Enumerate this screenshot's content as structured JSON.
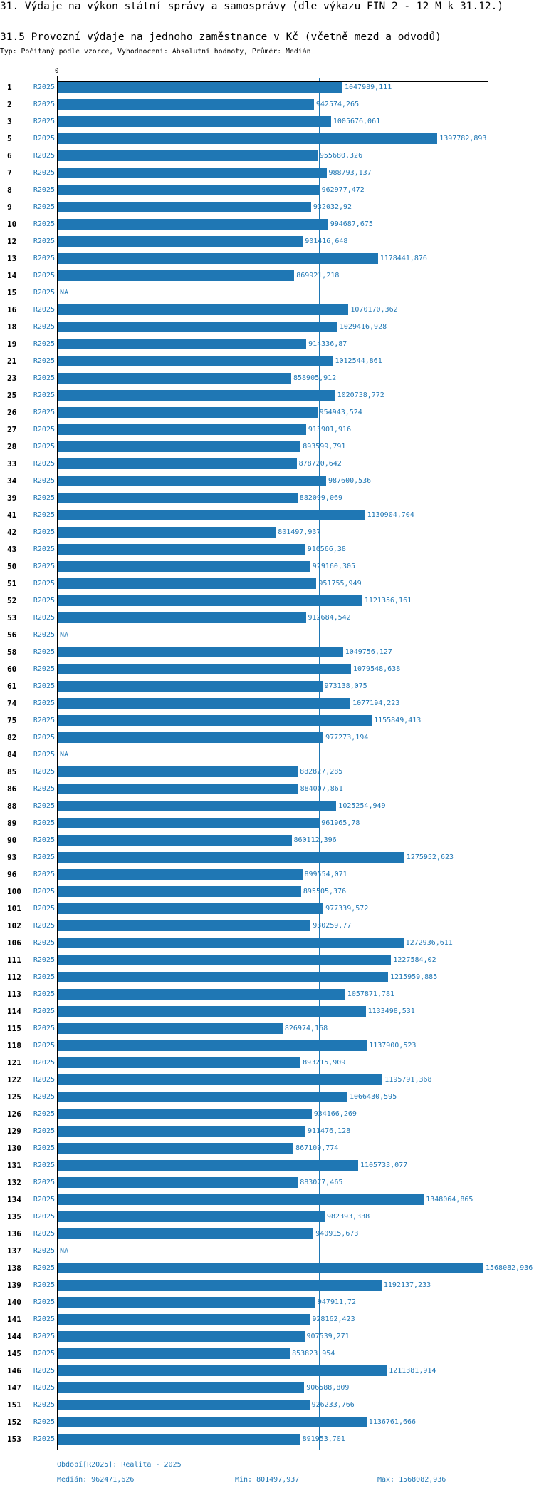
{
  "page": {
    "title": "31. Výdaje na výkon státní správy a samosprávy (dle výkazu FIN 2 - 12 M k 31.12.)",
    "subtitle": "31.5 Provozní výdaje na jednoho zaměstnance v Kč (včetně mezd a odvodů)",
    "info": "Typ: Počítaný podle vzorce, Vyhodnocení: Absolutní hodnoty, Průměr: Medián"
  },
  "colors": {
    "bar": "#1f77b4",
    "label": "#1f77b4",
    "axis": "#000000",
    "median_line": "#1f77b4"
  },
  "chart_data": {
    "type": "bar",
    "orientation": "horizontal",
    "title": "31.5 Provozní výdaje na jednoho zaměstnance v Kč (včetně mezd a odvodů)",
    "xlabel": "",
    "ylabel": "",
    "x_tick_labels": [
      "0"
    ],
    "xlim": [
      0,
      1586000
    ],
    "grid": false,
    "legend": "none",
    "series_name": "R2025",
    "reference_line": {
      "name": "Medián",
      "value": 962471.626
    },
    "rows": [
      {
        "id": "1",
        "series": "R2025",
        "value": 1047989.111,
        "label": "1047989,111"
      },
      {
        "id": "2",
        "series": "R2025",
        "value": 942574.265,
        "label": "942574,265"
      },
      {
        "id": "3",
        "series": "R2025",
        "value": 1005676.061,
        "label": "1005676,061"
      },
      {
        "id": "5",
        "series": "R2025",
        "value": 1397782.893,
        "label": "1397782,893"
      },
      {
        "id": "6",
        "series": "R2025",
        "value": 955680.326,
        "label": "955680,326"
      },
      {
        "id": "7",
        "series": "R2025",
        "value": 988793.137,
        "label": "988793,137"
      },
      {
        "id": "8",
        "series": "R2025",
        "value": 962977.472,
        "label": "962977,472"
      },
      {
        "id": "9",
        "series": "R2025",
        "value": 932032.92,
        "label": "932032,92"
      },
      {
        "id": "10",
        "series": "R2025",
        "value": 994687.675,
        "label": "994687,675"
      },
      {
        "id": "12",
        "series": "R2025",
        "value": 901416.648,
        "label": "901416,648"
      },
      {
        "id": "13",
        "series": "R2025",
        "value": 1178441.876,
        "label": "1178441,876"
      },
      {
        "id": "14",
        "series": "R2025",
        "value": 869921.218,
        "label": "869921,218"
      },
      {
        "id": "15",
        "series": "R2025",
        "value": null,
        "label": "NA"
      },
      {
        "id": "16",
        "series": "R2025",
        "value": 1070170.362,
        "label": "1070170,362"
      },
      {
        "id": "18",
        "series": "R2025",
        "value": 1029416.928,
        "label": "1029416,928"
      },
      {
        "id": "19",
        "series": "R2025",
        "value": 914336.87,
        "label": "914336,87"
      },
      {
        "id": "21",
        "series": "R2025",
        "value": 1012544.861,
        "label": "1012544,861"
      },
      {
        "id": "23",
        "series": "R2025",
        "value": 858905.912,
        "label": "858905,912"
      },
      {
        "id": "25",
        "series": "R2025",
        "value": 1020738.772,
        "label": "1020738,772"
      },
      {
        "id": "26",
        "series": "R2025",
        "value": 954943.524,
        "label": "954943,524"
      },
      {
        "id": "27",
        "series": "R2025",
        "value": 913901.916,
        "label": "913901,916"
      },
      {
        "id": "28",
        "series": "R2025",
        "value": 893599.791,
        "label": "893599,791"
      },
      {
        "id": "33",
        "series": "R2025",
        "value": 878720.642,
        "label": "878720,642"
      },
      {
        "id": "34",
        "series": "R2025",
        "value": 987600.536,
        "label": "987600,536"
      },
      {
        "id": "39",
        "series": "R2025",
        "value": 882099.069,
        "label": "882099,069"
      },
      {
        "id": "41",
        "series": "R2025",
        "value": 1130904.704,
        "label": "1130904,704"
      },
      {
        "id": "42",
        "series": "R2025",
        "value": 801497.937,
        "label": "801497,937"
      },
      {
        "id": "43",
        "series": "R2025",
        "value": 910566.38,
        "label": "910566,38"
      },
      {
        "id": "50",
        "series": "R2025",
        "value": 929160.305,
        "label": "929160,305"
      },
      {
        "id": "51",
        "series": "R2025",
        "value": 951755.949,
        "label": "951755,949"
      },
      {
        "id": "52",
        "series": "R2025",
        "value": 1121356.161,
        "label": "1121356,161"
      },
      {
        "id": "53",
        "series": "R2025",
        "value": 912684.542,
        "label": "912684,542"
      },
      {
        "id": "56",
        "series": "R2025",
        "value": null,
        "label": "NA"
      },
      {
        "id": "58",
        "series": "R2025",
        "value": 1049756.127,
        "label": "1049756,127"
      },
      {
        "id": "60",
        "series": "R2025",
        "value": 1079548.638,
        "label": "1079548,638"
      },
      {
        "id": "61",
        "series": "R2025",
        "value": 973138.075,
        "label": "973138,075"
      },
      {
        "id": "74",
        "series": "R2025",
        "value": 1077194.223,
        "label": "1077194,223"
      },
      {
        "id": "75",
        "series": "R2025",
        "value": 1155849.413,
        "label": "1155849,413"
      },
      {
        "id": "82",
        "series": "R2025",
        "value": 977273.194,
        "label": "977273,194"
      },
      {
        "id": "84",
        "series": "R2025",
        "value": null,
        "label": "NA"
      },
      {
        "id": "85",
        "series": "R2025",
        "value": 882827.285,
        "label": "882827,285"
      },
      {
        "id": "86",
        "series": "R2025",
        "value": 884007.861,
        "label": "884007,861"
      },
      {
        "id": "88",
        "series": "R2025",
        "value": 1025254.949,
        "label": "1025254,949"
      },
      {
        "id": "89",
        "series": "R2025",
        "value": 961965.78,
        "label": "961965,78"
      },
      {
        "id": "90",
        "series": "R2025",
        "value": 860112.396,
        "label": "860112,396"
      },
      {
        "id": "93",
        "series": "R2025",
        "value": 1275952.623,
        "label": "1275952,623"
      },
      {
        "id": "96",
        "series": "R2025",
        "value": 899554.071,
        "label": "899554,071"
      },
      {
        "id": "100",
        "series": "R2025",
        "value": 895505.376,
        "label": "895505,376"
      },
      {
        "id": "101",
        "series": "R2025",
        "value": 977339.572,
        "label": "977339,572"
      },
      {
        "id": "102",
        "series": "R2025",
        "value": 930259.77,
        "label": "930259,77"
      },
      {
        "id": "106",
        "series": "R2025",
        "value": 1272936.611,
        "label": "1272936,611"
      },
      {
        "id": "111",
        "series": "R2025",
        "value": 1227584.02,
        "label": "1227584,02"
      },
      {
        "id": "112",
        "series": "R2025",
        "value": 1215959.885,
        "label": "1215959,885"
      },
      {
        "id": "113",
        "series": "R2025",
        "value": 1057871.781,
        "label": "1057871,781"
      },
      {
        "id": "114",
        "series": "R2025",
        "value": 1133498.531,
        "label": "1133498,531"
      },
      {
        "id": "115",
        "series": "R2025",
        "value": 826974.168,
        "label": "826974,168"
      },
      {
        "id": "118",
        "series": "R2025",
        "value": 1137900.523,
        "label": "1137900,523"
      },
      {
        "id": "121",
        "series": "R2025",
        "value": 893215.909,
        "label": "893215,909"
      },
      {
        "id": "122",
        "series": "R2025",
        "value": 1195791.368,
        "label": "1195791,368"
      },
      {
        "id": "125",
        "series": "R2025",
        "value": 1066430.595,
        "label": "1066430,595"
      },
      {
        "id": "126",
        "series": "R2025",
        "value": 934166.269,
        "label": "934166,269"
      },
      {
        "id": "129",
        "series": "R2025",
        "value": 911476.128,
        "label": "911476,128"
      },
      {
        "id": "130",
        "series": "R2025",
        "value": 867109.774,
        "label": "867109,774"
      },
      {
        "id": "131",
        "series": "R2025",
        "value": 1105733.077,
        "label": "1105733,077"
      },
      {
        "id": "132",
        "series": "R2025",
        "value": 883077.465,
        "label": "883077,465"
      },
      {
        "id": "134",
        "series": "R2025",
        "value": 1348064.865,
        "label": "1348064,865"
      },
      {
        "id": "135",
        "series": "R2025",
        "value": 982393.338,
        "label": "982393,338"
      },
      {
        "id": "136",
        "series": "R2025",
        "value": 940915.673,
        "label": "940915,673"
      },
      {
        "id": "137",
        "series": "R2025",
        "value": null,
        "label": "NA"
      },
      {
        "id": "138",
        "series": "R2025",
        "value": 1568082.936,
        "label": "1568082,936"
      },
      {
        "id": "139",
        "series": "R2025",
        "value": 1192137.233,
        "label": "1192137,233"
      },
      {
        "id": "140",
        "series": "R2025",
        "value": 947911.72,
        "label": "947911,72"
      },
      {
        "id": "141",
        "series": "R2025",
        "value": 928162.423,
        "label": "928162,423"
      },
      {
        "id": "144",
        "series": "R2025",
        "value": 907539.271,
        "label": "907539,271"
      },
      {
        "id": "145",
        "series": "R2025",
        "value": 853823.954,
        "label": "853823,954"
      },
      {
        "id": "146",
        "series": "R2025",
        "value": 1211381.914,
        "label": "1211381,914"
      },
      {
        "id": "147",
        "series": "R2025",
        "value": 906588.809,
        "label": "906588,809"
      },
      {
        "id": "151",
        "series": "R2025",
        "value": 926233.766,
        "label": "926233,766"
      },
      {
        "id": "152",
        "series": "R2025",
        "value": 1136761.666,
        "label": "1136761,666"
      },
      {
        "id": "153",
        "series": "R2025",
        "value": 891953.701,
        "label": "891953,701"
      }
    ]
  },
  "footer": {
    "period": "Období[R2025]: Realita - 2025",
    "median": "Medián: 962471,626",
    "min": "Min: 801497,937",
    "max": "Max: 1568082,936"
  }
}
